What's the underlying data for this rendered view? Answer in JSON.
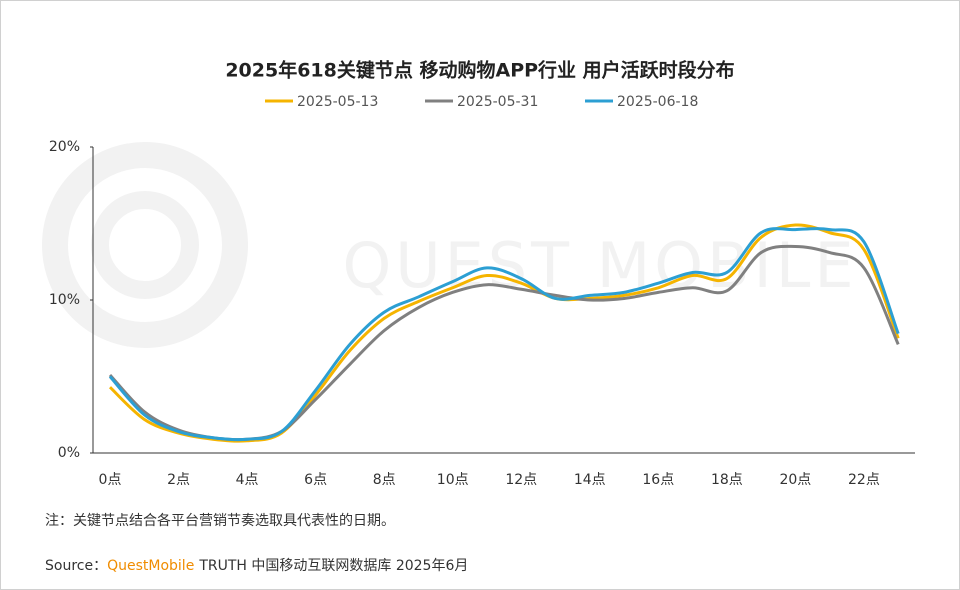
{
  "chart_data": {
    "type": "line",
    "title": "2025年618关键节点 移动购物APP行业 用户活跃时段分布",
    "categories": [
      "0点",
      null,
      "2点",
      null,
      "4点",
      null,
      "6点",
      null,
      "8点",
      null,
      "10点",
      null,
      "12点",
      null,
      "14点",
      null,
      "16点",
      null,
      "18点",
      null,
      "20点",
      null,
      "22点",
      null
    ],
    "series": [
      {
        "name": "2025-05-13",
        "color": "#f5b400",
        "values": [
          4.3,
          2.2,
          1.3,
          0.9,
          0.8,
          1.3,
          3.8,
          6.7,
          8.8,
          9.9,
          10.8,
          11.6,
          11.1,
          10.1,
          10.1,
          10.3,
          10.8,
          11.6,
          11.4,
          14.1,
          14.9,
          14.4,
          13.3,
          7.5
        ]
      },
      {
        "name": "2025-05-31",
        "color": "#808080",
        "values": [
          5.1,
          2.7,
          1.5,
          1.0,
          0.9,
          1.4,
          3.5,
          5.8,
          8.0,
          9.5,
          10.5,
          11.0,
          10.7,
          10.3,
          10.0,
          10.1,
          10.5,
          10.8,
          10.6,
          13.1,
          13.5,
          13.1,
          12.1,
          7.1
        ]
      },
      {
        "name": "2025-06-18",
        "color": "#2c9fd3",
        "values": [
          5.0,
          2.5,
          1.4,
          1.0,
          0.9,
          1.4,
          4.1,
          7.1,
          9.2,
          10.2,
          11.2,
          12.1,
          11.4,
          10.1,
          10.3,
          10.5,
          11.1,
          11.8,
          11.8,
          14.4,
          14.6,
          14.6,
          13.8,
          7.8
        ]
      }
    ],
    "ylim": [
      0,
      20
    ],
    "yticks": [
      {
        "value": 0,
        "label": "0%"
      },
      {
        "value": 10,
        "label": "10%"
      },
      {
        "value": 20,
        "label": "20%"
      }
    ],
    "grid": false,
    "legend": "top",
    "watermark": "QUEST MOBILE",
    "note": "注：关键节点结合各平台营销节奏选取具代表性的日期。",
    "source_label": "Source：",
    "source_brand": "QuestMobile",
    "source_text": "TRUTH 中国移动互联网数据库 2025年6月"
  }
}
